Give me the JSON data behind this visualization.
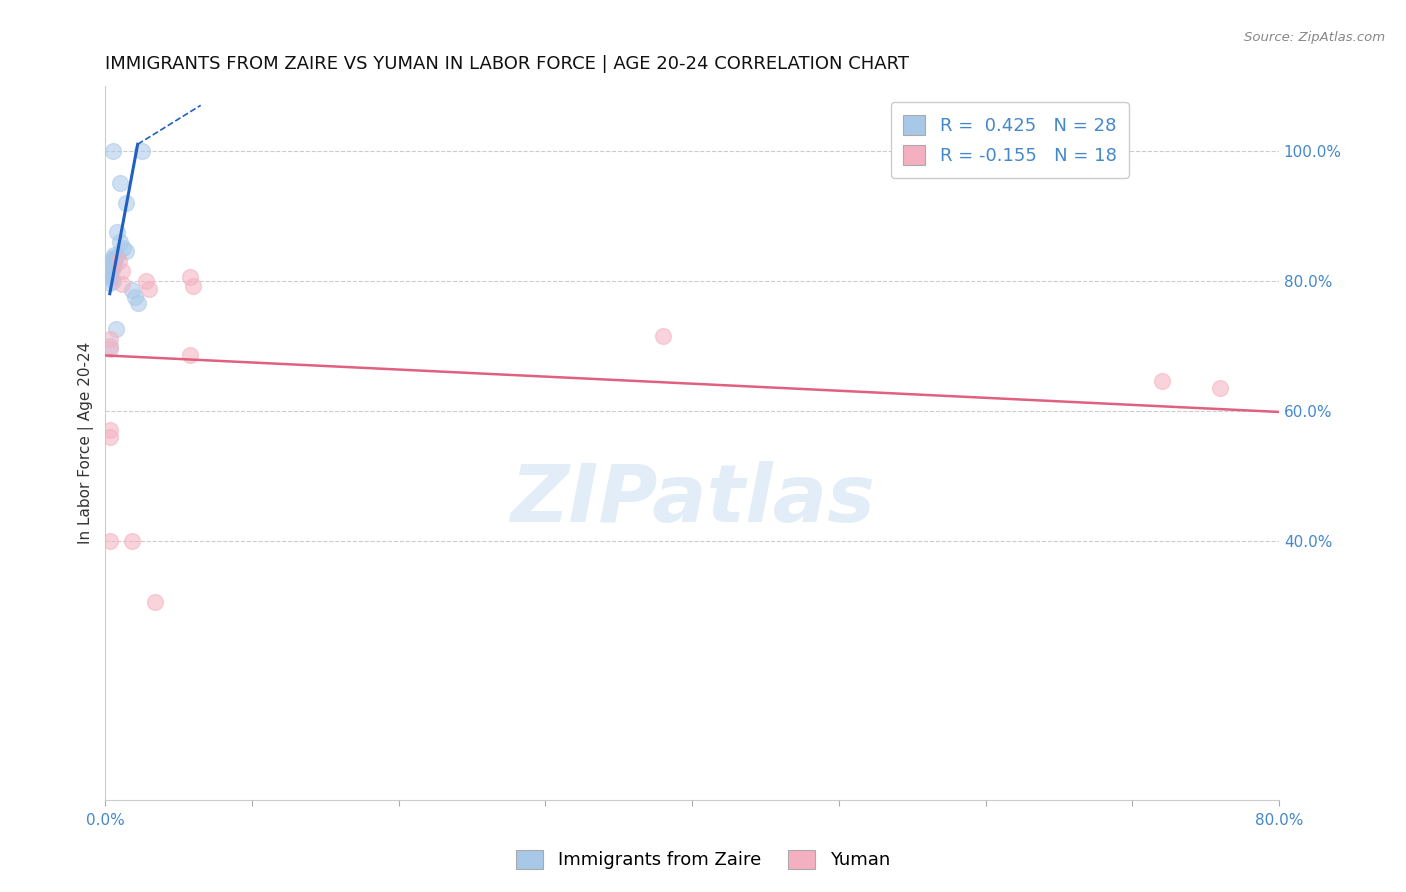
{
  "title": "IMMIGRANTS FROM ZAIRE VS YUMAN IN LABOR FORCE | AGE 20-24 CORRELATION CHART",
  "source": "Source: ZipAtlas.com",
  "ylabel": "In Labor Force | Age 20-24",
  "watermark": "ZIPatlas",
  "xlim": [
    0.0,
    0.8
  ],
  "ylim": [
    0.0,
    1.1
  ],
  "x_ticks": [
    0.0,
    0.1,
    0.2,
    0.3,
    0.4,
    0.5,
    0.6,
    0.7,
    0.8
  ],
  "x_tick_labels": [
    "0.0%",
    "",
    "",
    "",
    "",
    "",
    "",
    "",
    "80.0%"
  ],
  "y_ticks_right": [
    0.4,
    0.6,
    0.8,
    1.0
  ],
  "y_tick_labels_right": [
    "40.0%",
    "60.0%",
    "80.0%",
    "100.0%"
  ],
  "blue_R": 0.425,
  "blue_N": 28,
  "pink_R": -0.155,
  "pink_N": 18,
  "legend_label_blue": "Immigrants from Zaire",
  "legend_label_pink": "Yuman",
  "blue_color": "#a8c8e8",
  "pink_color": "#f4b0c0",
  "blue_line_color": "#2060c0",
  "pink_line_color": "#e06080",
  "blue_scatter": [
    [
      0.005,
      1.0
    ],
    [
      0.025,
      1.0
    ],
    [
      0.01,
      0.95
    ],
    [
      0.014,
      0.92
    ],
    [
      0.008,
      0.875
    ],
    [
      0.01,
      0.86
    ],
    [
      0.012,
      0.85
    ],
    [
      0.014,
      0.845
    ],
    [
      0.006,
      0.84
    ],
    [
      0.008,
      0.838
    ],
    [
      0.005,
      0.835
    ],
    [
      0.006,
      0.832
    ],
    [
      0.004,
      0.83
    ],
    [
      0.004,
      0.826
    ],
    [
      0.006,
      0.824
    ],
    [
      0.005,
      0.82
    ],
    [
      0.004,
      0.818
    ],
    [
      0.003,
      0.815
    ],
    [
      0.003,
      0.812
    ],
    [
      0.003,
      0.808
    ],
    [
      0.004,
      0.805
    ],
    [
      0.005,
      0.8
    ],
    [
      0.003,
      0.797
    ],
    [
      0.018,
      0.785
    ],
    [
      0.02,
      0.775
    ],
    [
      0.022,
      0.765
    ],
    [
      0.007,
      0.725
    ],
    [
      0.003,
      0.7
    ]
  ],
  "pink_scatter": [
    [
      0.003,
      0.71
    ],
    [
      0.003,
      0.695
    ],
    [
      0.009,
      0.83
    ],
    [
      0.011,
      0.815
    ],
    [
      0.011,
      0.795
    ],
    [
      0.003,
      0.57
    ],
    [
      0.003,
      0.56
    ],
    [
      0.028,
      0.8
    ],
    [
      0.03,
      0.788
    ],
    [
      0.058,
      0.805
    ],
    [
      0.06,
      0.792
    ],
    [
      0.003,
      0.4
    ],
    [
      0.018,
      0.4
    ],
    [
      0.034,
      0.305
    ],
    [
      0.058,
      0.685
    ],
    [
      0.38,
      0.715
    ],
    [
      0.72,
      0.645
    ],
    [
      0.76,
      0.635
    ]
  ],
  "blue_trendline_solid": [
    [
      0.003,
      0.78
    ],
    [
      0.022,
      1.01
    ]
  ],
  "blue_trendline_dashed": [
    [
      0.022,
      1.01
    ],
    [
      0.065,
      1.07
    ]
  ],
  "pink_trendline": [
    [
      0.0,
      0.685
    ],
    [
      0.8,
      0.598
    ]
  ],
  "marker_size": 130,
  "marker_alpha": 0.55,
  "background_color": "#ffffff",
  "grid_color": "#cccccc",
  "axis_label_color": "#4488cc",
  "title_color": "#111111",
  "title_fontsize": 13,
  "axis_tick_fontsize": 11,
  "legend_fontsize": 13
}
